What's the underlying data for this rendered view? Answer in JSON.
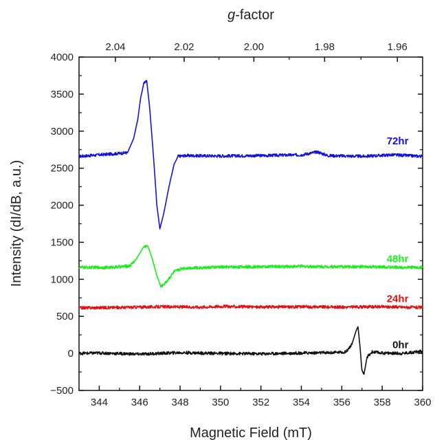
{
  "chart_data": {
    "type": "line",
    "title": "",
    "xlabel": "Magnetic Field (mT)",
    "ylabel": "Intensity (dI/dB, a.u.)",
    "top_axis_label_prefix": "g",
    "top_axis_label_suffix": "-factor",
    "xlim": [
      343,
      360
    ],
    "ylim": [
      -500,
      4000
    ],
    "x_ticks": [
      344,
      346,
      348,
      350,
      352,
      354,
      356,
      358,
      360
    ],
    "x_tick_labels": [
      "344",
      "346",
      "348",
      "350",
      "352",
      "354",
      "356",
      "358",
      "360"
    ],
    "y_ticks": [
      -500,
      0,
      500,
      1000,
      1500,
      2000,
      2500,
      3000,
      3500,
      4000
    ],
    "y_tick_labels": [
      "−500",
      "0",
      "500",
      "1000",
      "1500",
      "2000",
      "2500",
      "3000",
      "3500",
      "4000"
    ],
    "top_ticks": [
      {
        "label": "2.04",
        "field": 344.8
      },
      {
        "label": "2.02",
        "field": 348.2
      },
      {
        "label": "2.00",
        "field": 351.65
      },
      {
        "label": "1.98",
        "field": 355.15
      },
      {
        "label": "1.96",
        "field": 358.75
      }
    ],
    "grid": false,
    "legend": "none",
    "series": [
      {
        "name": "72hr",
        "color": "#1212d2",
        "label_at": [
          359.3,
          2820
        ],
        "points": [
          [
            343,
            2660
          ],
          [
            344,
            2680
          ],
          [
            345,
            2700
          ],
          [
            345.4,
            2710
          ],
          [
            345.7,
            2900
          ],
          [
            345.9,
            3150
          ],
          [
            346.05,
            3450
          ],
          [
            346.2,
            3640
          ],
          [
            346.35,
            3680
          ],
          [
            346.5,
            3300
          ],
          [
            346.7,
            2600
          ],
          [
            346.85,
            2000
          ],
          [
            347.0,
            1680
          ],
          [
            347.2,
            1900
          ],
          [
            347.45,
            2250
          ],
          [
            347.7,
            2550
          ],
          [
            347.9,
            2660
          ],
          [
            348.3,
            2670
          ],
          [
            350,
            2665
          ],
          [
            352,
            2670
          ],
          [
            354,
            2680
          ],
          [
            354.8,
            2720
          ],
          [
            355.3,
            2670
          ],
          [
            357,
            2660
          ],
          [
            358.5,
            2680
          ],
          [
            360,
            2660
          ]
        ]
      },
      {
        "name": "48hr",
        "color": "#18ee18",
        "label_at": [
          359.3,
          1230
        ],
        "points": [
          [
            343,
            1160
          ],
          [
            344.5,
            1160
          ],
          [
            345.5,
            1180
          ],
          [
            345.8,
            1260
          ],
          [
            346.0,
            1350
          ],
          [
            346.2,
            1440
          ],
          [
            346.4,
            1450
          ],
          [
            346.6,
            1300
          ],
          [
            346.85,
            1050
          ],
          [
            347.05,
            900
          ],
          [
            347.3,
            960
          ],
          [
            347.7,
            1100
          ],
          [
            348.1,
            1150
          ],
          [
            350,
            1165
          ],
          [
            352,
            1170
          ],
          [
            354,
            1175
          ],
          [
            356,
            1170
          ],
          [
            358,
            1165
          ],
          [
            360,
            1160
          ]
        ]
      },
      {
        "name": "24hr",
        "color": "#e41010",
        "label_at": [
          359.3,
          690
        ],
        "points": [
          [
            343,
            615
          ],
          [
            345,
            620
          ],
          [
            347,
            630
          ],
          [
            349,
            625
          ],
          [
            350,
            635
          ],
          [
            352,
            625
          ],
          [
            354,
            630
          ],
          [
            356,
            625
          ],
          [
            358,
            630
          ],
          [
            360,
            620
          ]
        ]
      },
      {
        "name": "0hr",
        "color": "#111111",
        "label_at": [
          359.3,
          70
        ],
        "points": [
          [
            343,
            0
          ],
          [
            344,
            5
          ],
          [
            346,
            -10
          ],
          [
            348,
            10
          ],
          [
            350,
            0
          ],
          [
            352,
            -5
          ],
          [
            354,
            5
          ],
          [
            355.5,
            10
          ],
          [
            356.2,
            20
          ],
          [
            356.5,
            120
          ],
          [
            356.7,
            300
          ],
          [
            356.8,
            360
          ],
          [
            356.9,
            100
          ],
          [
            357.0,
            -250
          ],
          [
            357.1,
            -280
          ],
          [
            357.25,
            -50
          ],
          [
            357.5,
            20
          ],
          [
            358,
            5
          ],
          [
            359,
            0
          ],
          [
            360,
            30
          ]
        ]
      }
    ]
  }
}
